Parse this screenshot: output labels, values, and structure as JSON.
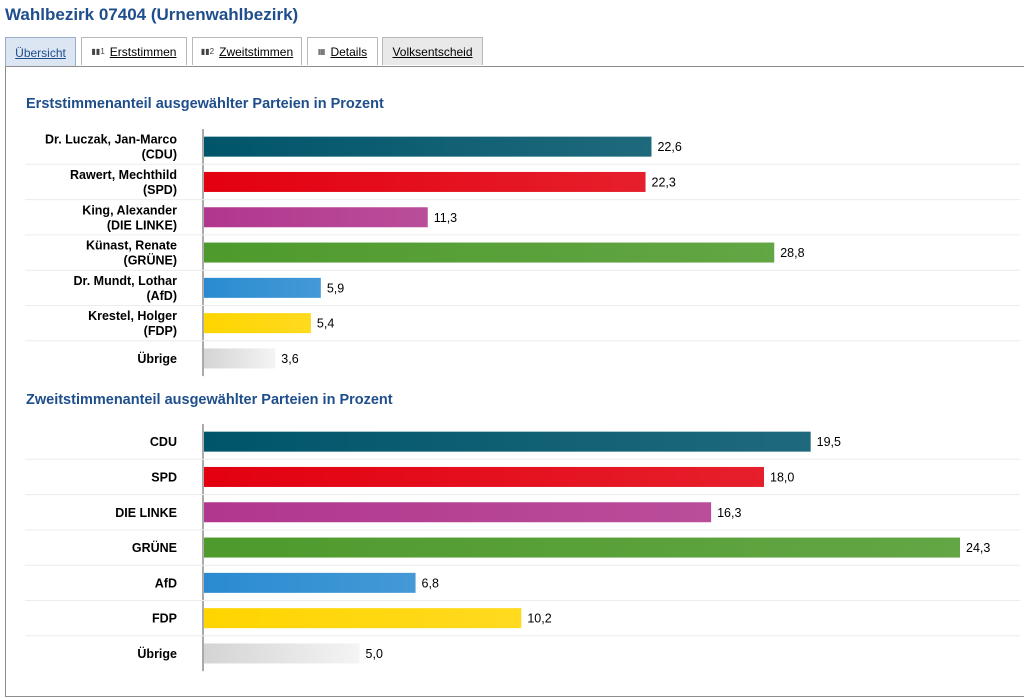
{
  "header": {
    "title": "Wahlbezirk 07404 (Urnenwahlbezirk)"
  },
  "tabs": [
    {
      "label": "Übersicht",
      "icon": "",
      "state": "active"
    },
    {
      "label": "Erststimmen",
      "icon": "bar-chart-1-icon",
      "state": "normal"
    },
    {
      "label": "Zweitstimmen",
      "icon": "bar-chart-2-icon",
      "state": "normal"
    },
    {
      "label": "Details",
      "icon": "table-icon",
      "state": "normal"
    },
    {
      "label": "Volksentscheid",
      "icon": "",
      "state": "grey"
    }
  ],
  "colors": {
    "CDU": "#00556a",
    "SPD": "#e3000f",
    "DIE LINKE": "#b1368d",
    "GRÜNE": "#4e9a2c",
    "AfD": "#2a8bd0",
    "FDP": "#ffd500",
    "Übrige": "#d9d9d9"
  },
  "chart_data": [
    {
      "type": "bar",
      "orientation": "horizontal",
      "title": "Erststimmenanteil ausgewählter Parteien in Prozent",
      "categories": [
        [
          "Dr. Luczak, Jan-Marco",
          "(CDU)"
        ],
        [
          "Rawert, Mechthild",
          "(SPD)"
        ],
        [
          "King, Alexander",
          "(DIE LINKE)"
        ],
        [
          "Künast, Renate",
          "(GRÜNE)"
        ],
        [
          "Dr. Mundt, Lothar",
          "(AfD)"
        ],
        [
          "Krestel, Holger",
          "(FDP)"
        ],
        [
          "Übrige"
        ]
      ],
      "parties": [
        "CDU",
        "SPD",
        "DIE LINKE",
        "GRÜNE",
        "AfD",
        "FDP",
        "Übrige"
      ],
      "values": [
        22.6,
        22.3,
        11.3,
        28.8,
        5.9,
        5.4,
        3.6
      ],
      "value_labels": [
        "22,6",
        "22,3",
        "11,3",
        "28,8",
        "5,9",
        "5,4",
        "3,6"
      ],
      "xlim": [
        0,
        30
      ]
    },
    {
      "type": "bar",
      "orientation": "horizontal",
      "title": "Zweitstimmenanteil ausgewählter Parteien in Prozent",
      "categories": [
        [
          "CDU"
        ],
        [
          "SPD"
        ],
        [
          "DIE LINKE"
        ],
        [
          "GRÜNE"
        ],
        [
          "AfD"
        ],
        [
          "FDP"
        ],
        [
          "Übrige"
        ]
      ],
      "parties": [
        "CDU",
        "SPD",
        "DIE LINKE",
        "GRÜNE",
        "AfD",
        "FDP",
        "Übrige"
      ],
      "values": [
        19.5,
        18.0,
        16.3,
        24.3,
        6.8,
        10.2,
        5.0
      ],
      "value_labels": [
        "19,5",
        "18,0",
        "16,3",
        "24,3",
        "6,8",
        "10,2",
        "5,0"
      ],
      "xlim": [
        0,
        24.3
      ]
    }
  ]
}
